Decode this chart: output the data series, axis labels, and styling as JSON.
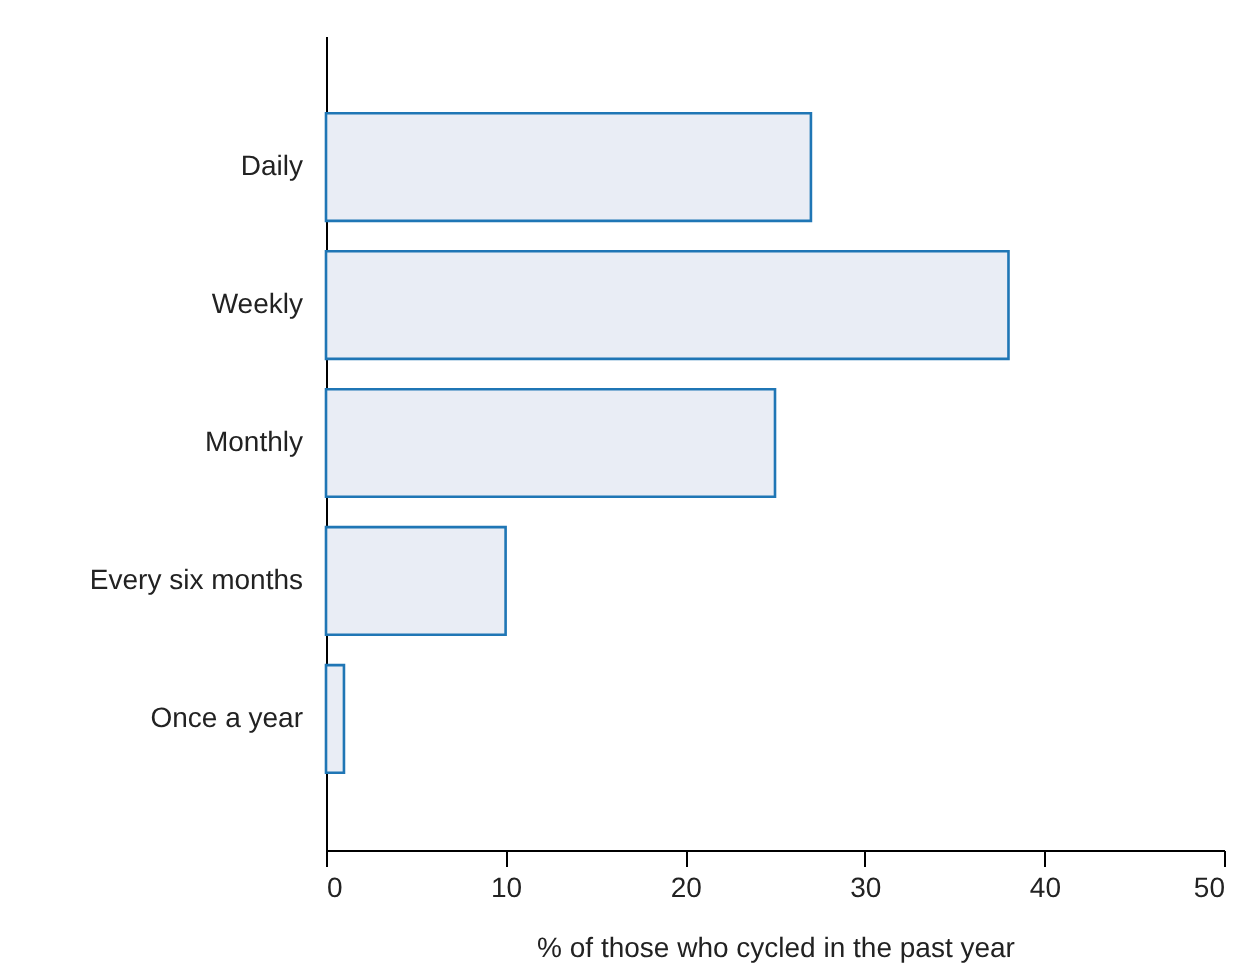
{
  "chart_data": {
    "type": "bar",
    "orientation": "horizontal",
    "categories": [
      "Daily",
      "Weekly",
      "Monthly",
      "Every six months",
      "Once a year"
    ],
    "values": [
      27,
      38,
      25,
      10,
      1
    ],
    "color": "#e9edf5",
    "xlabel": "% of those who cycled in the past year",
    "xlim": [
      0,
      50
    ],
    "xticks": [
      0,
      10,
      20,
      30,
      40,
      50
    ],
    "grid": false
  }
}
